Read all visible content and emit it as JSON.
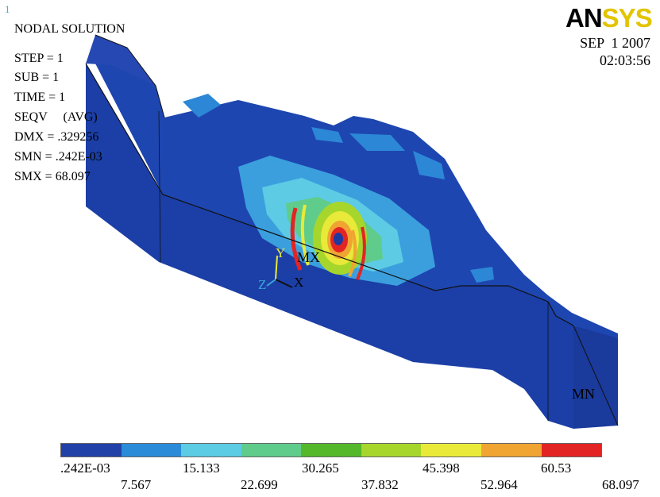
{
  "window_number": "1",
  "brand": {
    "part1": "AN",
    "part2": "SYS"
  },
  "date": "SEP  1 2007",
  "time": "02:03:56",
  "info": {
    "title": "NODAL SOLUTION",
    "step": "STEP = 1",
    "sub": "SUB = 1",
    "time": "TIME = 1",
    "seqv": "SEQV     (AVG)",
    "dmx": "DMX = .329256",
    "smn": "SMN = .242E-03",
    "smx": "SMX = 68.097"
  },
  "markers": {
    "mx": "MX",
    "mn": "MN"
  },
  "triad": {
    "x": "X",
    "y": "Y",
    "z": "Z"
  },
  "legend": {
    "colors": [
      "#2241a8",
      "#2a8bd8",
      "#5ccbe4",
      "#5fcc8c",
      "#55b82a",
      "#a6d62c",
      "#e9e93a",
      "#f0a432",
      "#e32424"
    ],
    "top_labels": [
      ".242E-03",
      "15.133",
      "30.265",
      "45.398",
      "60.53"
    ],
    "bottom_labels": [
      "7.567",
      "22.699",
      "37.832",
      "52.964",
      "68.097"
    ]
  }
}
